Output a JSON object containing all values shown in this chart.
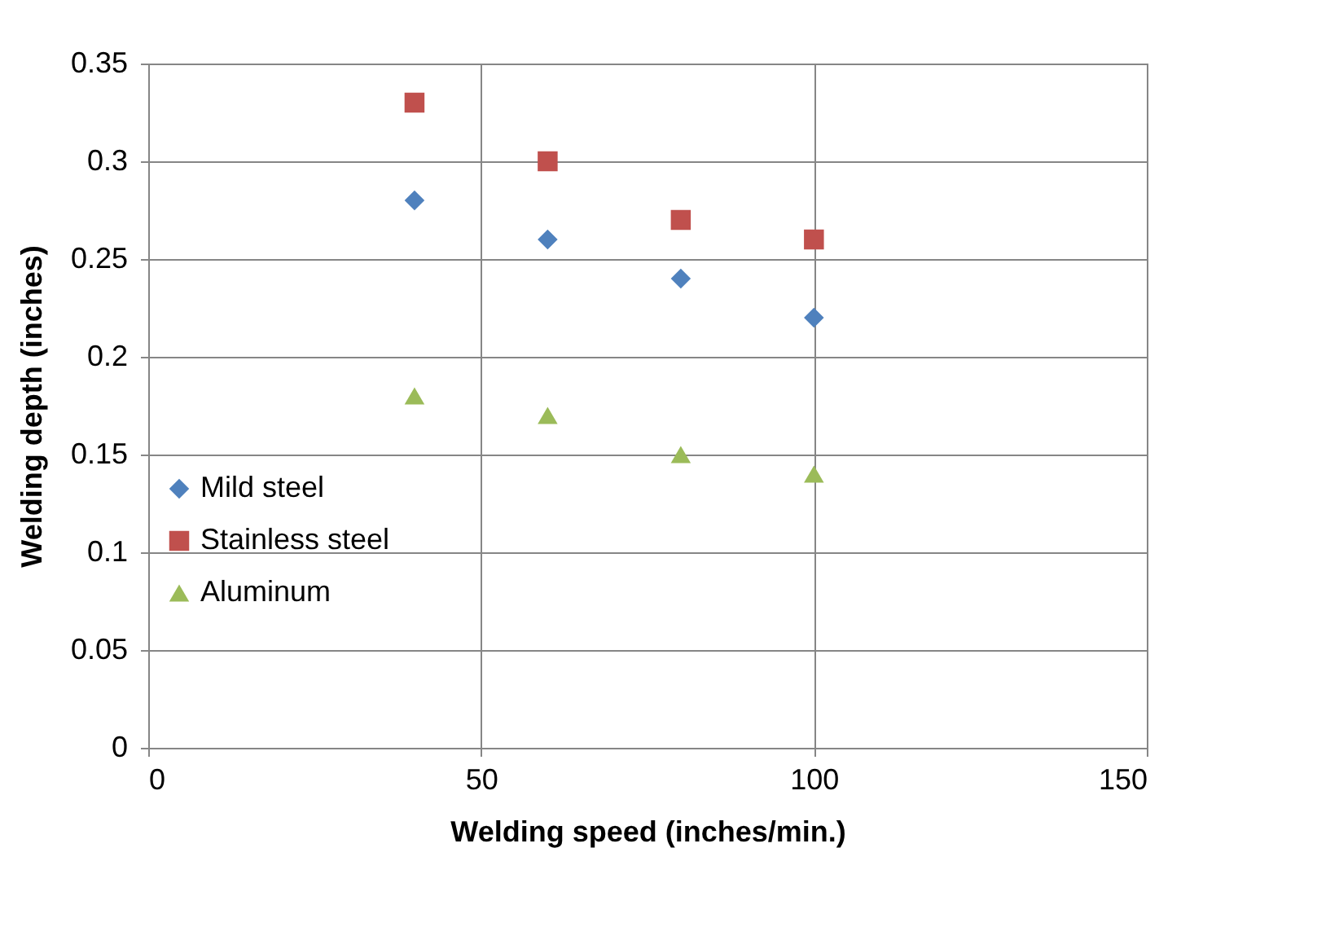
{
  "chart_data": {
    "type": "scatter",
    "xlabel": "Welding speed (inches/min.)",
    "ylabel": "Welding depth (inches)",
    "x": [
      40,
      60,
      80,
      100
    ],
    "series": [
      {
        "name": "Mild steel",
        "color": "#4f81bd",
        "marker": "diamond",
        "values": [
          0.28,
          0.26,
          0.24,
          0.22
        ]
      },
      {
        "name": "Stainless steel",
        "color": "#c0504d",
        "marker": "square",
        "values": [
          0.33,
          0.3,
          0.27,
          0.26
        ]
      },
      {
        "name": "Aluminum",
        "color": "#9bbb59",
        "marker": "triangle",
        "values": [
          0.18,
          0.17,
          0.15,
          0.14
        ]
      }
    ],
    "xlim": [
      0,
      150
    ],
    "xticks": [
      0,
      50,
      100,
      150
    ],
    "ylim": [
      0,
      0.35
    ],
    "yticks": [
      0,
      0.05,
      0.1,
      0.15,
      0.2,
      0.25,
      0.3,
      0.35
    ],
    "grid": true,
    "legend": "left"
  }
}
